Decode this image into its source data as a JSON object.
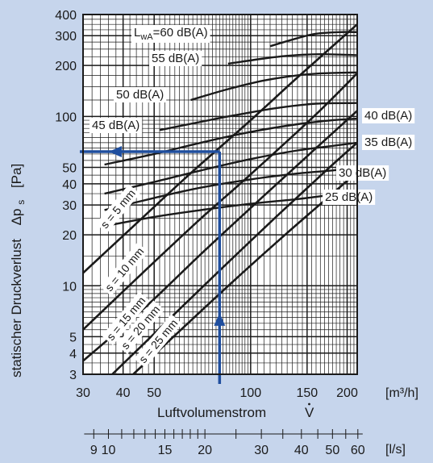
{
  "colors": {
    "background": "#c6d5ec",
    "plot_area": "#ffffff",
    "grid": "#1a1a1a",
    "curves": "#1a1a1a",
    "reading_arrows": "#1f4e9e",
    "label_box": "#ffffff"
  },
  "chart_data": {
    "type": "line",
    "x_scale": "log",
    "y_scale": "log",
    "xlim": [
      30,
      215
    ],
    "ylim": [
      3,
      400
    ],
    "grid": true,
    "xlabel": "Luftvolumenstrom",
    "xlabel_symbol": "V",
    "x_unit": "[m³/h]",
    "ylabel": "statischer Druckverlust",
    "ylabel_symbol": "Δp",
    "ylabel_symbol_sub": "s",
    "y_unit": "[Pa]",
    "x_ticks": [
      {
        "value": 30,
        "label": "30"
      },
      {
        "value": 40,
        "label": "40"
      },
      {
        "value": 50,
        "label": "50"
      },
      {
        "value": 100,
        "label": "100"
      },
      {
        "value": 150,
        "label": "150"
      },
      {
        "value": 200,
        "label": "200"
      }
    ],
    "y_ticks": [
      {
        "value": 3,
        "label": "3"
      },
      {
        "value": 4,
        "label": "4"
      },
      {
        "value": 5,
        "label": "5"
      },
      {
        "value": 10,
        "label": "10"
      },
      {
        "value": 20,
        "label": "20"
      },
      {
        "value": 30,
        "label": "30"
      },
      {
        "value": 40,
        "label": "40"
      },
      {
        "value": 50,
        "label": "50"
      },
      {
        "value": 100,
        "label": "100"
      },
      {
        "value": 200,
        "label": "200"
      },
      {
        "value": 300,
        "label": "300"
      },
      {
        "value": 400,
        "label": "400"
      }
    ],
    "secondary_x_axis": {
      "unit": "[l/s]",
      "ticks": [
        {
          "value": 9,
          "label": "9"
        },
        {
          "value": 10,
          "label": "10"
        },
        {
          "value": 15,
          "label": "15"
        },
        {
          "value": 20,
          "label": "20"
        },
        {
          "value": 30,
          "label": "30"
        },
        {
          "value": 40,
          "label": "40"
        },
        {
          "value": 50,
          "label": "50"
        },
        {
          "value": 60,
          "label": "60"
        }
      ]
    },
    "spacing_lines": [
      {
        "name": "s = 5 mm",
        "points": [
          [
            30,
            11.9
          ],
          [
            43,
            22.4
          ],
          [
            64,
            45
          ],
          [
            100,
            95
          ],
          [
            140,
            170
          ],
          [
            215,
            350
          ]
        ]
      },
      {
        "name": "s = 10 mm",
        "points": [
          [
            30,
            5.5
          ],
          [
            46,
            11.9
          ],
          [
            70,
            25
          ],
          [
            100,
            45.5
          ],
          [
            160,
            103
          ],
          [
            215,
            180
          ]
        ]
      },
      {
        "name": "s = 15 mm",
        "points": [
          [
            30,
            3.6
          ],
          [
            47,
            7.5
          ],
          [
            70,
            15.4
          ],
          [
            110,
            34
          ],
          [
            160,
            65
          ],
          [
            215,
            108
          ]
        ]
      },
      {
        "name": "s = 20 mm",
        "points": [
          [
            37,
            3
          ],
          [
            55,
            6.2
          ],
          [
            80,
            12.3
          ],
          [
            120,
            25.5
          ],
          [
            170,
            47
          ],
          [
            215,
            70
          ]
        ]
      },
      {
        "name": "s = 25 mm",
        "points": [
          [
            43,
            3
          ],
          [
            60,
            5.4
          ],
          [
            90,
            11
          ],
          [
            130,
            20.5
          ],
          [
            180,
            35
          ],
          [
            215,
            47
          ]
        ]
      }
    ],
    "sound_curves": [
      {
        "name": "LwA=60 dB(A)",
        "label": "60 dB(A)",
        "points": [
          [
            115,
            260
          ],
          [
            140,
            290
          ],
          [
            160,
            308
          ],
          [
            190,
            315
          ],
          [
            215,
            315
          ]
        ]
      },
      {
        "name": "55 dB(A)",
        "label": "55 dB(A)",
        "points": [
          [
            85,
            205
          ],
          [
            110,
            220
          ],
          [
            130,
            228
          ],
          [
            160,
            233
          ],
          [
            190,
            232
          ],
          [
            215,
            230
          ]
        ]
      },
      {
        "name": "50 dB(A)",
        "label": "50 dB(A)",
        "points": [
          [
            65,
            125
          ],
          [
            85,
            145
          ],
          [
            110,
            163
          ],
          [
            140,
            175
          ],
          [
            170,
            180
          ],
          [
            215,
            182
          ]
        ]
      },
      {
        "name": "45 dB(A)",
        "label": "45 dB(A)",
        "points": [
          [
            52,
            83
          ],
          [
            70,
            93
          ],
          [
            90,
            102
          ],
          [
            120,
            112
          ],
          [
            160,
            119
          ],
          [
            215,
            120
          ]
        ]
      },
      {
        "name": "40 dB(A)",
        "label": "40 dB(A)",
        "points": [
          [
            35,
            52
          ],
          [
            50,
            60
          ],
          [
            70,
            70
          ],
          [
            100,
            81
          ],
          [
            140,
            90
          ],
          [
            180,
            95
          ],
          [
            215,
            97
          ]
        ]
      },
      {
        "name": "35 dB(A)",
        "label": "35 dB(A)",
        "points": [
          [
            35,
            35
          ],
          [
            50,
            41
          ],
          [
            70,
            48
          ],
          [
            100,
            56
          ],
          [
            140,
            63
          ],
          [
            180,
            67
          ],
          [
            215,
            70
          ]
        ]
      },
      {
        "name": "30 dB(A)",
        "label": "30 dB(A)",
        "points": [
          [
            35,
            28
          ],
          [
            50,
            33
          ],
          [
            70,
            38
          ],
          [
            100,
            42.5
          ],
          [
            140,
            46
          ],
          [
            180,
            48
          ],
          [
            215,
            50
          ]
        ]
      },
      {
        "name": "25 dB(A)",
        "label": "25 dB(A)",
        "points": [
          [
            35,
            22.5
          ],
          [
            50,
            25.5
          ],
          [
            70,
            28
          ],
          [
            100,
            30.5
          ],
          [
            140,
            32.5
          ],
          [
            180,
            34.5
          ],
          [
            215,
            36
          ]
        ]
      }
    ],
    "reading_example": {
      "flow": 80,
      "pressure": 62
    }
  }
}
